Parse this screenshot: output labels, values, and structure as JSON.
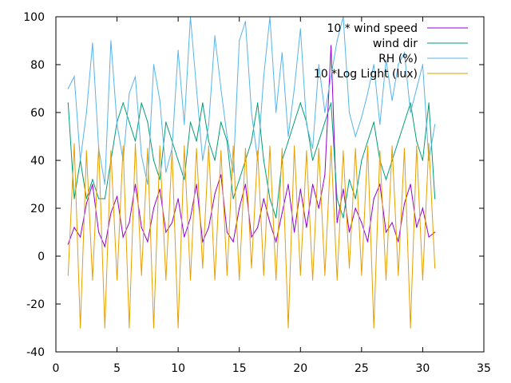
{
  "chart_data": {
    "type": "line",
    "title": "",
    "xlabel": "",
    "ylabel": "",
    "xlim": [
      0,
      35
    ],
    "ylim": [
      -40,
      100
    ],
    "xticks": [
      0,
      5,
      10,
      15,
      20,
      25,
      30,
      35
    ],
    "yticks": [
      -40,
      -20,
      0,
      20,
      40,
      60,
      80,
      100
    ],
    "grid": false,
    "legend_position": "top-right",
    "series": [
      {
        "name": "10 * wind speed",
        "color": "#9400d3",
        "x": [
          1.0,
          1.5,
          2.0,
          2.5,
          3.0,
          3.5,
          4.0,
          4.5,
          5.0,
          5.5,
          6.0,
          6.5,
          7.0,
          7.5,
          8.0,
          8.5,
          9.0,
          9.5,
          10.0,
          10.5,
          11.0,
          11.5,
          12.0,
          12.5,
          13.0,
          13.5,
          14.0,
          14.5,
          15.0,
          15.5,
          16.0,
          16.5,
          17.0,
          17.5,
          18.0,
          18.5,
          19.0,
          19.5,
          20.0,
          20.5,
          21.0,
          21.5,
          22.0,
          22.5,
          23.0,
          23.5,
          24.0,
          24.5,
          25.0,
          25.5,
          26.0,
          26.5,
          27.0,
          27.5,
          28.0,
          28.5,
          29.0,
          29.5,
          30.0,
          30.5,
          31.0
        ],
        "y": [
          5,
          12,
          8,
          22,
          30,
          10,
          4,
          18,
          25,
          8,
          14,
          30,
          12,
          6,
          20,
          28,
          10,
          14,
          24,
          8,
          16,
          30,
          6,
          12,
          26,
          34,
          10,
          6,
          20,
          30,
          8,
          12,
          24,
          14,
          6,
          18,
          30,
          10,
          28,
          12,
          30,
          20,
          34,
          88,
          14,
          28,
          10,
          20,
          14,
          6,
          24,
          30,
          10,
          14,
          6,
          22,
          30,
          12,
          20,
          8,
          10
        ]
      },
      {
        "name": "wind dir",
        "color": "#009e73",
        "x": [
          1.0,
          1.5,
          2.0,
          2.5,
          3.0,
          3.5,
          4.0,
          4.5,
          5.0,
          5.5,
          6.0,
          6.5,
          7.0,
          7.5,
          8.0,
          8.5,
          9.0,
          9.5,
          10.0,
          10.5,
          11.0,
          11.5,
          12.0,
          12.5,
          13.0,
          13.5,
          14.0,
          14.5,
          15.0,
          15.5,
          16.0,
          16.5,
          17.0,
          17.5,
          18.0,
          18.5,
          19.0,
          19.5,
          20.0,
          20.5,
          21.0,
          21.5,
          22.0,
          22.5,
          23.0,
          23.5,
          24.0,
          24.5,
          25.0,
          25.5,
          26.0,
          26.5,
          27.0,
          27.5,
          28.0,
          28.5,
          29.0,
          29.5,
          30.0,
          30.5,
          31.0
        ],
        "y": [
          64,
          24,
          40,
          24,
          32,
          24,
          24,
          40,
          56,
          64,
          56,
          48,
          64,
          56,
          40,
          32,
          56,
          48,
          40,
          32,
          56,
          48,
          64,
          48,
          40,
          56,
          48,
          24,
          32,
          40,
          48,
          64,
          40,
          24,
          16,
          40,
          48,
          56,
          64,
          56,
          40,
          48,
          56,
          64,
          24,
          16,
          32,
          24,
          40,
          48,
          56,
          40,
          32,
          40,
          48,
          56,
          64,
          48,
          40,
          64,
          24
        ]
      },
      {
        "name": "RH (%)",
        "color": "#56b4e9",
        "x": [
          1.0,
          1.5,
          2.0,
          2.5,
          3.0,
          3.5,
          4.0,
          4.5,
          5.0,
          5.5,
          6.0,
          6.5,
          7.0,
          7.5,
          8.0,
          8.5,
          9.0,
          9.5,
          10.0,
          10.5,
          11.0,
          11.5,
          12.0,
          12.5,
          13.0,
          13.5,
          14.0,
          14.5,
          15.0,
          15.5,
          16.0,
          16.5,
          17.0,
          17.5,
          18.0,
          18.5,
          19.0,
          19.5,
          20.0,
          20.5,
          21.0,
          21.5,
          22.0,
          22.5,
          23.0,
          23.5,
          24.0,
          24.5,
          25.0,
          25.5,
          26.0,
          26.5,
          27.0,
          27.5,
          28.0,
          28.5,
          29.0,
          29.5,
          30.0,
          30.5,
          31.0
        ],
        "y": [
          70,
          75,
          40,
          60,
          89,
          45,
          30,
          90,
          55,
          40,
          68,
          75,
          42,
          30,
          80,
          65,
          35,
          45,
          86,
          55,
          100,
          70,
          40,
          55,
          92,
          70,
          50,
          35,
          90,
          98,
          60,
          40,
          75,
          100,
          60,
          85,
          50,
          70,
          95,
          55,
          45,
          80,
          60,
          75,
          90,
          100,
          60,
          50,
          58,
          68,
          80,
          55,
          82,
          65,
          80,
          85,
          60,
          70,
          80,
          40,
          55
        ]
      },
      {
        "name": "10 *Log Light (lux)",
        "color": "#e69f00",
        "x": [
          1.0,
          1.5,
          2.0,
          2.5,
          3.0,
          3.5,
          4.0,
          4.5,
          5.0,
          5.5,
          6.0,
          6.5,
          7.0,
          7.5,
          8.0,
          8.5,
          9.0,
          9.5,
          10.0,
          10.5,
          11.0,
          11.5,
          12.0,
          12.5,
          13.0,
          13.5,
          14.0,
          14.5,
          15.0,
          15.5,
          16.0,
          16.5,
          17.0,
          17.5,
          18.0,
          18.5,
          19.0,
          19.5,
          20.0,
          20.5,
          21.0,
          21.5,
          22.0,
          22.5,
          23.0,
          23.5,
          24.0,
          24.5,
          25.0,
          25.5,
          26.0,
          26.5,
          27.0,
          27.5,
          28.0,
          28.5,
          29.0,
          29.5,
          30.0,
          30.5,
          31.0
        ],
        "y": [
          -8,
          47,
          -30,
          44,
          -10,
          46,
          -30,
          44,
          -10,
          46,
          -30,
          47,
          -8,
          45,
          -30,
          46,
          -10,
          44,
          -30,
          46,
          -10,
          45,
          -5,
          46,
          -10,
          44,
          -8,
          46,
          -10,
          45,
          -5,
          44,
          -8,
          46,
          -10,
          45,
          -30,
          46,
          -8,
          44,
          -10,
          45,
          -8,
          46,
          -10,
          44,
          -5,
          45,
          -8,
          46,
          -30,
          44,
          -10,
          46,
          -8,
          45,
          -30,
          46,
          -10,
          47,
          -5
        ]
      }
    ]
  }
}
